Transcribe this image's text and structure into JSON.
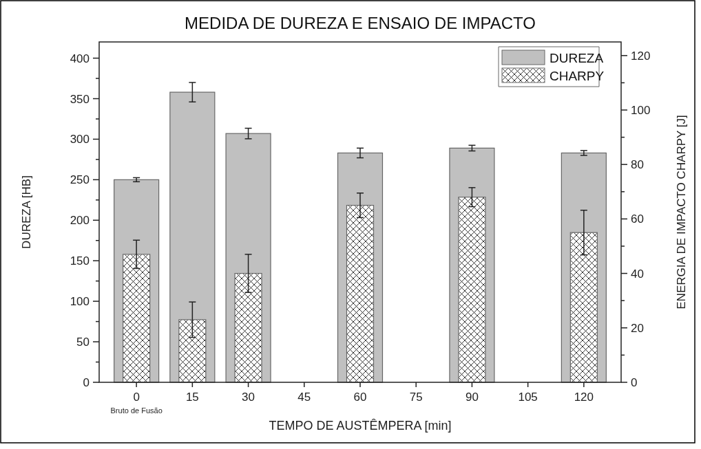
{
  "chart_data": {
    "type": "bar",
    "title": "MEDIDA DE DUREZA E ENSAIO DE IMPACTO",
    "xlabel": "TEMPO DE AUSTÊMPERA [min]",
    "ylabel": "DUREZA [HB]",
    "y2label": "ENERGIA DE IMPACTO CHARPY [J]",
    "x": [
      0,
      15,
      30,
      60,
      90,
      120
    ],
    "xlim": [
      -10,
      130
    ],
    "xticks": [
      {
        "value": 0,
        "label": "0\nBruto de Fusão"
      },
      15,
      30,
      45,
      60,
      75,
      90,
      105,
      120
    ],
    "ylim": [
      0,
      420
    ],
    "yticks": [
      0,
      {
        "value": 25,
        "label": null
      },
      50,
      {
        "value": 75,
        "label": null
      },
      100,
      {
        "value": 125,
        "label": null
      },
      150,
      {
        "value": 175,
        "label": null
      },
      200,
      {
        "value": 225,
        "label": null
      },
      250,
      {
        "value": 275,
        "label": null
      },
      300,
      {
        "value": 325,
        "label": null
      },
      350,
      {
        "value": 375,
        "label": null
      },
      400
    ],
    "y2lim": [
      0,
      125
    ],
    "y2ticks": [
      0,
      {
        "value": 10,
        "label": null
      },
      20,
      {
        "value": 30,
        "label": null
      },
      40,
      {
        "value": 50,
        "label": null
      },
      60,
      {
        "value": 70,
        "label": null
      },
      80,
      {
        "value": 90,
        "label": null
      },
      100,
      {
        "value": 110,
        "label": null
      },
      120
    ],
    "legend": "top right",
    "series": [
      {
        "name": "DUREZA",
        "color": "#c0c0c0",
        "values": [
          250,
          358,
          307,
          283,
          289,
          283
        ],
        "errors": [
          2.5,
          12,
          6.5,
          6,
          3.5,
          3
        ]
      },
      {
        "name": "CHARPY",
        "color": "#ffffff",
        "axis": "y2",
        "values": [
          47,
          23,
          40,
          65,
          68,
          55
        ],
        "errors": [
          5.2,
          6.5,
          7,
          4.5,
          3.5,
          8.2
        ]
      }
    ]
  }
}
